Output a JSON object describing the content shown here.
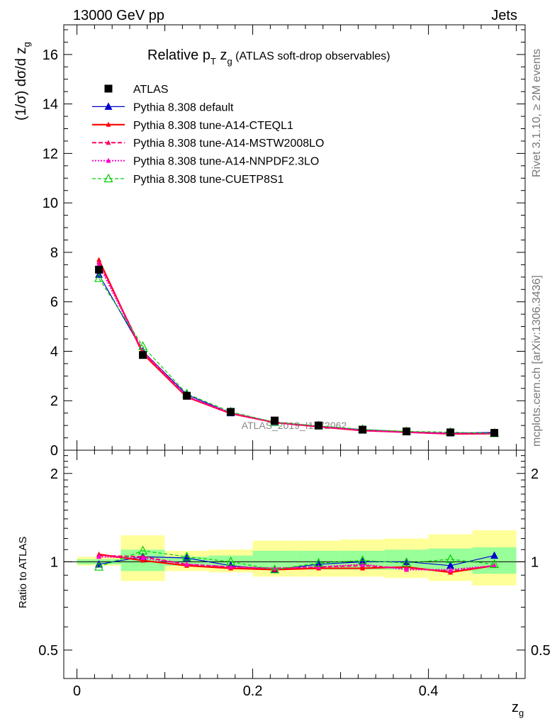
{
  "header": {
    "left": "13000 GeV pp",
    "right": "Jets"
  },
  "side_labels": {
    "rivet": "Rivet 3.1.10, ≥ 2M events",
    "mcplots": "mcplots.cern.ch [arXiv:1306.3436]"
  },
  "colors": {
    "atlas": "#000000",
    "default": "#0000cc",
    "cteql1": "#ff0000",
    "mstw": "#ff0066",
    "nnpdf": "#ff00cc",
    "cuetp8s1": "#00cc00",
    "band_outer": "#ffff99",
    "band_inner": "#99ff99"
  },
  "chart_data": [
    {
      "type": "line",
      "panel": "main",
      "title": "Relative p_T z_g (ATLAS soft-drop observables)",
      "title_parts": {
        "main": "Relative p",
        "sub1": "T",
        "mid": " z",
        "sub2": "g",
        "rest": " (ATLAS soft-drop observables)"
      },
      "ylabel": "(1/σ) dσ/d z_g",
      "ylabel_parts": {
        "main": "(1/σ) dσ/d z",
        "sub": "g"
      },
      "watermark": "ATLAS_2019_I1772062",
      "xlim": [
        -0.015,
        0.51
      ],
      "ylim": [
        0,
        17.2
      ],
      "yticks": [
        0,
        2,
        4,
        6,
        8,
        10,
        12,
        14,
        16
      ],
      "grid": false,
      "legend_position": "top-left",
      "x": [
        0.025,
        0.075,
        0.125,
        0.175,
        0.225,
        0.275,
        0.325,
        0.375,
        0.425,
        0.475
      ],
      "series": [
        {
          "name": "ATLAS",
          "key": "atlas",
          "values": [
            7.3,
            3.85,
            2.2,
            1.55,
            1.2,
            1.0,
            0.83,
            0.76,
            0.72,
            0.7
          ]
        },
        {
          "name": "Pythia 8.308 default",
          "key": "default",
          "values": [
            7.1,
            4.0,
            2.25,
            1.5,
            1.12,
            0.97,
            0.83,
            0.75,
            0.69,
            0.72
          ]
        },
        {
          "name": "Pythia 8.308 tune-A14-CTEQL1",
          "key": "cteql1",
          "values": [
            7.7,
            3.9,
            2.15,
            1.48,
            1.12,
            0.95,
            0.79,
            0.73,
            0.66,
            0.67
          ]
        },
        {
          "name": "Pythia 8.308 tune-A14-MSTW2008LO",
          "key": "mstw",
          "values": [
            7.6,
            4.0,
            2.17,
            1.5,
            1.13,
            0.96,
            0.8,
            0.73,
            0.67,
            0.68
          ]
        },
        {
          "name": "Pythia 8.308 tune-A14-NNPDF2.3LO",
          "key": "nnpdf",
          "values": [
            7.5,
            3.95,
            2.17,
            1.49,
            1.12,
            0.95,
            0.8,
            0.72,
            0.67,
            0.67
          ]
        },
        {
          "name": "Pythia 8.308 tune-CUETP8S1",
          "key": "cuetp8s1",
          "values": [
            6.95,
            4.2,
            2.28,
            1.55,
            1.13,
            0.99,
            0.84,
            0.76,
            0.73,
            0.68
          ]
        }
      ]
    },
    {
      "type": "line",
      "panel": "ratio",
      "ylabel": "Ratio to ATLAS",
      "xlabel": "z_g",
      "xlabel_parts": {
        "main": "z",
        "sub": "g"
      },
      "xlim": [
        -0.015,
        0.51
      ],
      "xticks": [
        0,
        0.2,
        0.4
      ],
      "xtick_labels": [
        "0",
        "0.2",
        "0.4"
      ],
      "ylim": [
        0.4,
        2.4
      ],
      "ylog": true,
      "yticks": [
        0.5,
        1,
        2
      ],
      "ytick_labels": [
        "0.5",
        "1",
        "2"
      ],
      "reference_line": 1,
      "bins": [
        [
          0,
          0.05
        ],
        [
          0.05,
          0.1
        ],
        [
          0.1,
          0.15
        ],
        [
          0.15,
          0.2
        ],
        [
          0.2,
          0.25
        ],
        [
          0.25,
          0.3
        ],
        [
          0.3,
          0.35
        ],
        [
          0.35,
          0.4
        ],
        [
          0.4,
          0.45
        ],
        [
          0.45,
          0.5
        ]
      ],
      "band_outer": [
        [
          0.97,
          1.04
        ],
        [
          0.86,
          1.23
        ],
        [
          0.93,
          1.09
        ],
        [
          0.92,
          1.1
        ],
        [
          0.89,
          1.18
        ],
        [
          0.89,
          1.18
        ],
        [
          0.89,
          1.19
        ],
        [
          0.88,
          1.2
        ],
        [
          0.86,
          1.24
        ],
        [
          0.83,
          1.28
        ]
      ],
      "band_inner": [
        [
          0.98,
          1.02
        ],
        [
          0.93,
          1.1
        ],
        [
          0.97,
          1.04
        ],
        [
          0.96,
          1.05
        ],
        [
          0.94,
          1.09
        ],
        [
          0.94,
          1.09
        ],
        [
          0.94,
          1.09
        ],
        [
          0.94,
          1.1
        ],
        [
          0.93,
          1.11
        ],
        [
          0.91,
          1.12
        ]
      ],
      "x": [
        0.025,
        0.075,
        0.125,
        0.175,
        0.225,
        0.275,
        0.325,
        0.375,
        0.425,
        0.475
      ],
      "series": [
        {
          "name": "Pythia 8.308 default",
          "key": "default",
          "values": [
            0.98,
            1.04,
            1.03,
            0.97,
            0.94,
            0.98,
            1.0,
            1.0,
            0.97,
            1.05
          ]
        },
        {
          "name": "Pythia 8.308 tune-A14-CTEQL1",
          "key": "cteql1",
          "values": [
            1.06,
            1.01,
            0.97,
            0.95,
            0.94,
            0.95,
            0.95,
            0.96,
            0.92,
            0.97
          ]
        },
        {
          "name": "Pythia 8.308 tune-A14-MSTW2008LO",
          "key": "mstw",
          "values": [
            1.05,
            1.04,
            0.98,
            0.96,
            0.95,
            0.96,
            0.97,
            0.95,
            0.93,
            0.97
          ]
        },
        {
          "name": "Pythia 8.308 tune-A14-NNPDF2.3LO",
          "key": "nnpdf",
          "values": [
            1.04,
            1.03,
            0.98,
            0.96,
            0.95,
            0.96,
            0.98,
            0.94,
            0.94,
            0.97
          ]
        },
        {
          "name": "Pythia 8.308 tune-CUETP8S1",
          "key": "cuetp8s1",
          "values": [
            0.96,
            1.09,
            1.04,
            1.0,
            0.94,
            0.99,
            1.01,
            0.99,
            1.02,
            0.98
          ]
        }
      ]
    }
  ]
}
